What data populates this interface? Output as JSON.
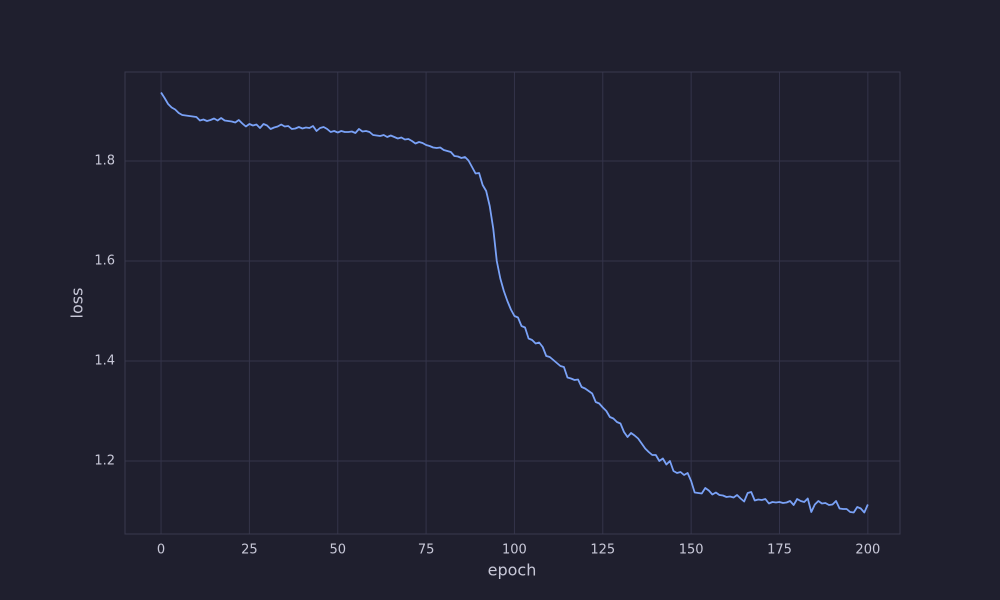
{
  "chart_data": {
    "type": "line",
    "x_label": "epoch",
    "y_label": "loss",
    "x": [
      0,
      1,
      2,
      3,
      4,
      5,
      6,
      7,
      8,
      9,
      10,
      11,
      12,
      13,
      14,
      15,
      16,
      17,
      18,
      19,
      20,
      21,
      22,
      23,
      24,
      25,
      26,
      27,
      28,
      29,
      30,
      31,
      32,
      33,
      34,
      35,
      36,
      37,
      38,
      39,
      40,
      41,
      42,
      43,
      44,
      45,
      46,
      47,
      48,
      49,
      50,
      51,
      52,
      53,
      54,
      55,
      56,
      57,
      58,
      59,
      60,
      61,
      62,
      63,
      64,
      65,
      66,
      67,
      68,
      69,
      70,
      71,
      72,
      73,
      74,
      75,
      76,
      77,
      78,
      79,
      80,
      81,
      82,
      83,
      84,
      85,
      86,
      87,
      88,
      89,
      90,
      91,
      92,
      93,
      94,
      95,
      96,
      97,
      98,
      99,
      100,
      101,
      102,
      103,
      104,
      105,
      106,
      107,
      108,
      109,
      110,
      111,
      112,
      113,
      114,
      115,
      116,
      117,
      118,
      119,
      120,
      121,
      122,
      123,
      124,
      125,
      126,
      127,
      128,
      129,
      130,
      131,
      132,
      133,
      134,
      135,
      136,
      137,
      138,
      139,
      140,
      141,
      142,
      143,
      144,
      145,
      146,
      147,
      148,
      149,
      150,
      151,
      152,
      153,
      154,
      155,
      156,
      157,
      158,
      159,
      160,
      161,
      162,
      163,
      164,
      165,
      166,
      167,
      168,
      169,
      170,
      171,
      172,
      173,
      174,
      175,
      176,
      177,
      178,
      179,
      180,
      181,
      182,
      183,
      184,
      185,
      186,
      187,
      188,
      189,
      190,
      191,
      192,
      193,
      194,
      195,
      196,
      197,
      198,
      199,
      200
    ],
    "series": [
      {
        "color": "#7aa2f7",
        "values": [
          1.937,
          1.926,
          1.914,
          1.907,
          1.903,
          1.896,
          1.892,
          1.891,
          1.89,
          1.889,
          1.888,
          1.881,
          1.883,
          1.88,
          1.882,
          1.885,
          1.881,
          1.886,
          1.881,
          1.88,
          1.879,
          1.877,
          1.882,
          1.875,
          1.869,
          1.874,
          1.871,
          1.873,
          1.866,
          1.874,
          1.871,
          1.864,
          1.867,
          1.869,
          1.873,
          1.869,
          1.87,
          1.864,
          1.865,
          1.868,
          1.865,
          1.867,
          1.866,
          1.87,
          1.86,
          1.866,
          1.868,
          1.864,
          1.858,
          1.86,
          1.857,
          1.86,
          1.858,
          1.858,
          1.859,
          1.856,
          1.864,
          1.859,
          1.86,
          1.858,
          1.852,
          1.851,
          1.85,
          1.852,
          1.848,
          1.851,
          1.848,
          1.845,
          1.847,
          1.843,
          1.844,
          1.84,
          1.835,
          1.838,
          1.836,
          1.832,
          1.83,
          1.827,
          1.826,
          1.827,
          1.822,
          1.82,
          1.818,
          1.81,
          1.809,
          1.806,
          1.808,
          1.801,
          1.788,
          1.775,
          1.776,
          1.752,
          1.74,
          1.71,
          1.665,
          1.6,
          1.565,
          1.54,
          1.52,
          1.503,
          1.49,
          1.487,
          1.47,
          1.467,
          1.445,
          1.442,
          1.435,
          1.437,
          1.428,
          1.41,
          1.408,
          1.402,
          1.396,
          1.39,
          1.388,
          1.367,
          1.365,
          1.362,
          1.363,
          1.348,
          1.345,
          1.34,
          1.335,
          1.318,
          1.315,
          1.307,
          1.3,
          1.288,
          1.285,
          1.278,
          1.275,
          1.258,
          1.248,
          1.256,
          1.251,
          1.245,
          1.235,
          1.225,
          1.218,
          1.212,
          1.212,
          1.2,
          1.205,
          1.193,
          1.2,
          1.18,
          1.176,
          1.178,
          1.172,
          1.176,
          1.16,
          1.137,
          1.136,
          1.135,
          1.146,
          1.141,
          1.133,
          1.137,
          1.132,
          1.131,
          1.128,
          1.129,
          1.127,
          1.132,
          1.125,
          1.119,
          1.136,
          1.138,
          1.121,
          1.123,
          1.122,
          1.124,
          1.115,
          1.118,
          1.117,
          1.118,
          1.116,
          1.117,
          1.12,
          1.112,
          1.124,
          1.12,
          1.118,
          1.125,
          1.098,
          1.113,
          1.12,
          1.115,
          1.116,
          1.112,
          1.113,
          1.12,
          1.105,
          1.104,
          1.104,
          1.098,
          1.097,
          1.108,
          1.105,
          1.097,
          1.113
        ]
      }
    ],
    "xlim": [
      -10.2,
      209.1
    ],
    "xticks": [
      0,
      25,
      50,
      75,
      100,
      125,
      150,
      175,
      200
    ],
    "ylim": [
      1.054,
      1.978
    ],
    "yticks": [
      1.2,
      1.4,
      1.6,
      1.8
    ],
    "grid": true
  }
}
